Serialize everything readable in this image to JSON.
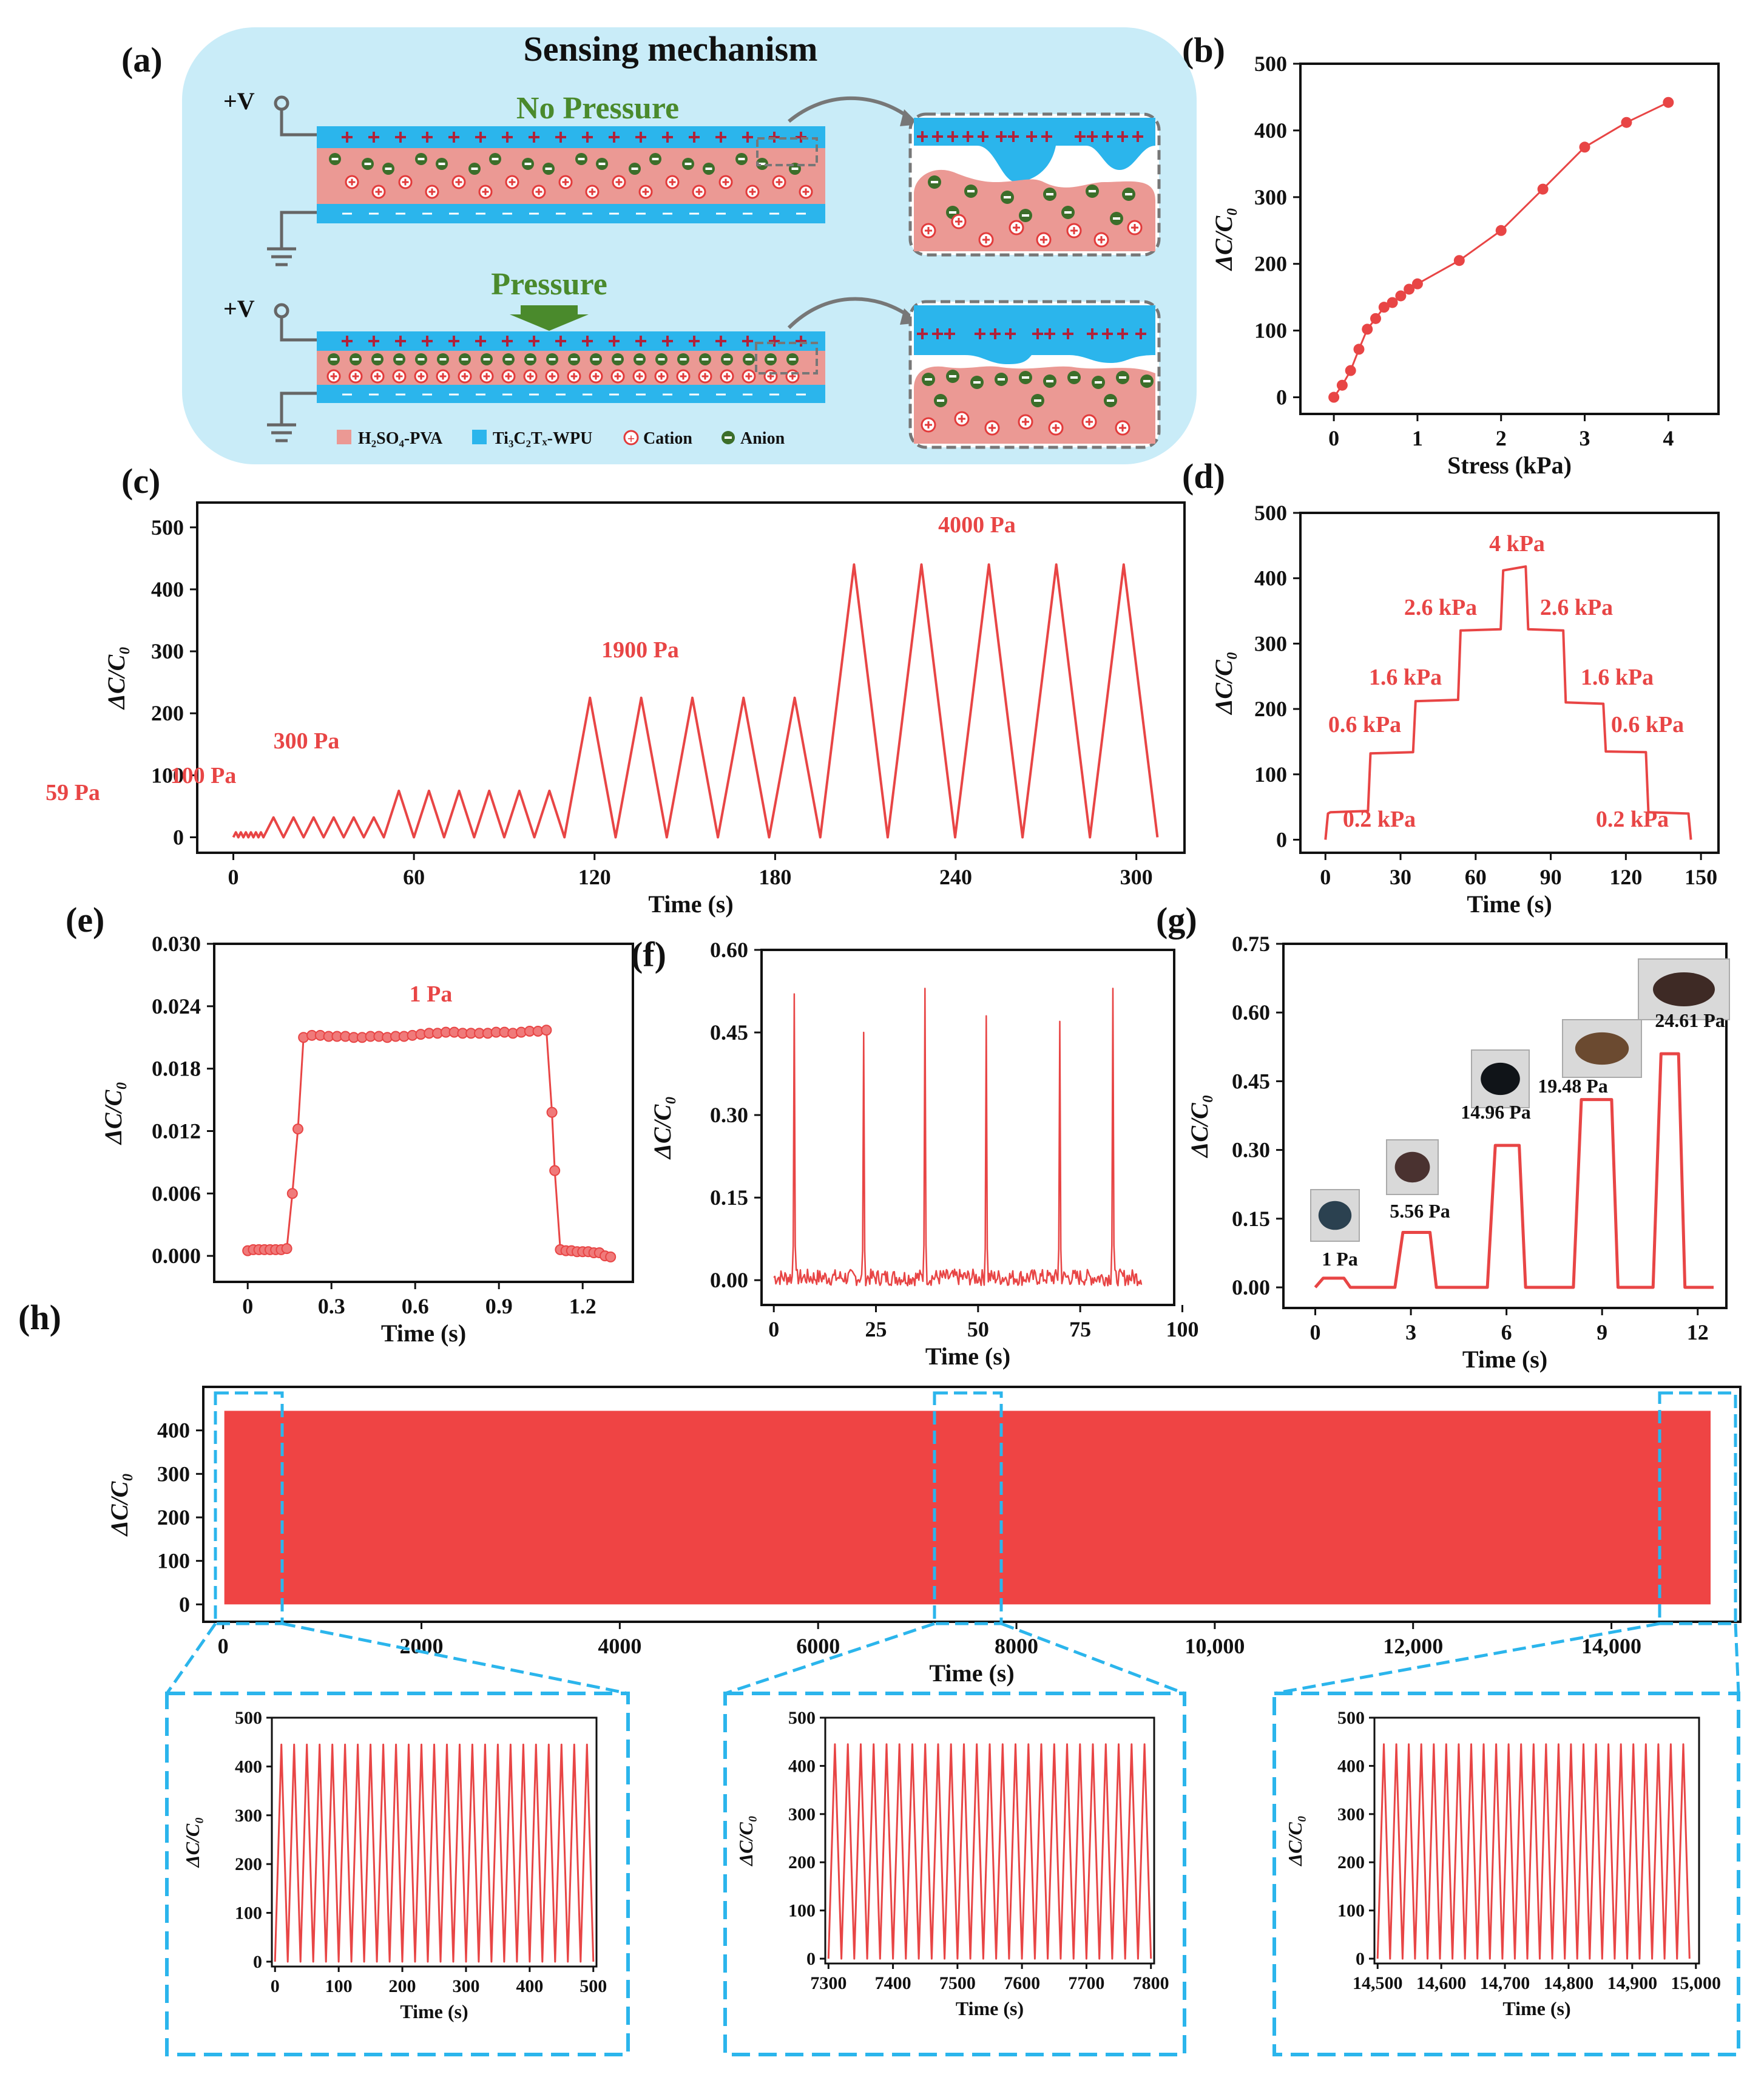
{
  "panel_labels": [
    "(a)",
    "(b)",
    "(c)",
    "(d)",
    "(e)",
    "(f)",
    "(g)",
    "(h)"
  ],
  "mechanism": {
    "title": "Sensing mechanism",
    "state_no_pressure": "No Pressure",
    "state_pressure": "Pressure",
    "voltage_label": "+V",
    "legend": [
      "H₂SO₄-PVA",
      "Ti₃C₂Tₓ-WPU",
      "Cation",
      "Anion"
    ],
    "colors": {
      "background": "#c9ecf8",
      "electrode": "#2bb5ec",
      "electrolyte": "#eb9994",
      "cation": "#e23b3b",
      "anion": "#3c6e2a",
      "arrow": "#4a8a2c"
    }
  },
  "y_label": "ΔC/C₀",
  "colors": {
    "line": "#e84545",
    "fill": "#ef4444",
    "inset_frame": "#2bb5ec"
  },
  "chart_data": [
    {
      "id": "b",
      "type": "line",
      "x": [
        0,
        0.1,
        0.2,
        0.3,
        0.4,
        0.5,
        0.6,
        0.7,
        0.8,
        0.9,
        1.0,
        1.5,
        2.0,
        2.5,
        3.0,
        3.5,
        4.0
      ],
      "y": [
        0,
        18,
        40,
        72,
        102,
        118,
        135,
        142,
        152,
        162,
        170,
        205,
        250,
        312,
        375,
        412,
        442
      ],
      "xlabel": "Stress (kPa)",
      "ylabel": "ΔC/C₀",
      "xlim": [
        -0.4,
        4.6
      ],
      "ylim": [
        -25,
        500
      ],
      "xticks": [
        0,
        1,
        2,
        3,
        4
      ],
      "yticks": [
        0,
        100,
        200,
        300,
        400,
        500
      ]
    },
    {
      "id": "c",
      "type": "line",
      "segments": [
        {
          "label": "59 Pa",
          "start": 0,
          "end": 10,
          "amp": 8,
          "cycles": 6
        },
        {
          "label": "100 Pa",
          "start": 10,
          "end": 50,
          "amp": 32,
          "cycles": 6
        },
        {
          "label": "300 Pa",
          "start": 50,
          "end": 110,
          "amp": 75,
          "cycles": 6
        },
        {
          "label": "1900 Pa",
          "start": 110,
          "end": 195,
          "amp": 225,
          "cycles": 5
        },
        {
          "label": "4000 Pa",
          "start": 195,
          "end": 307,
          "amp": 440,
          "cycles": 5
        }
      ],
      "xlabel": "Time (s)",
      "ylabel": "ΔC/C₀",
      "xlim": [
        -12,
        316
      ],
      "ylim": [
        -25,
        540
      ],
      "xticks": [
        0,
        60,
        120,
        180,
        240,
        300
      ],
      "yticks": [
        0,
        100,
        200,
        300,
        400,
        500
      ]
    },
    {
      "id": "d",
      "type": "line",
      "x": [
        0,
        1,
        2,
        17,
        18,
        35,
        36,
        53,
        54,
        70,
        71,
        80,
        81,
        95,
        96,
        111,
        112,
        128,
        129,
        145,
        146
      ],
      "y": [
        0,
        40,
        42,
        44,
        132,
        134,
        212,
        214,
        320,
        322,
        412,
        418,
        322,
        320,
        210,
        208,
        135,
        134,
        42,
        40,
        0
      ],
      "annotations": [
        "0.2 kPa",
        "0.6 kPa",
        "1.6 kPa",
        "2.6 kPa",
        "4 kPa",
        "2.6 kPa",
        "1.6 kPa",
        "0.6 kPa",
        "0.2 kPa"
      ],
      "xlabel": "Time (s)",
      "ylabel": "ΔC/C₀",
      "xlim": [
        -10,
        157
      ],
      "ylim": [
        -20,
        500
      ],
      "xticks": [
        0,
        30,
        60,
        90,
        120,
        150
      ],
      "yticks": [
        0,
        100,
        200,
        300,
        400,
        500
      ]
    },
    {
      "id": "e",
      "type": "scatter",
      "x": [
        0.0,
        0.02,
        0.04,
        0.06,
        0.08,
        0.1,
        0.12,
        0.14,
        0.16,
        0.18,
        0.2,
        0.23,
        0.26,
        0.29,
        0.32,
        0.35,
        0.38,
        0.41,
        0.44,
        0.47,
        0.5,
        0.53,
        0.56,
        0.59,
        0.62,
        0.65,
        0.68,
        0.71,
        0.74,
        0.77,
        0.8,
        0.83,
        0.86,
        0.89,
        0.92,
        0.95,
        0.98,
        1.01,
        1.04,
        1.07,
        1.09,
        1.1,
        1.12,
        1.14,
        1.16,
        1.18,
        1.2,
        1.22,
        1.24,
        1.26,
        1.28,
        1.3
      ],
      "y": [
        0.0005,
        0.0006,
        0.0006,
        0.0006,
        0.0006,
        0.0006,
        0.0006,
        0.0007,
        0.006,
        0.0122,
        0.021,
        0.0212,
        0.0212,
        0.0211,
        0.0211,
        0.0211,
        0.021,
        0.021,
        0.0211,
        0.0211,
        0.021,
        0.0211,
        0.0211,
        0.0212,
        0.0213,
        0.0214,
        0.0214,
        0.0215,
        0.0215,
        0.0214,
        0.0214,
        0.0214,
        0.0214,
        0.0215,
        0.0215,
        0.0214,
        0.0215,
        0.0216,
        0.0216,
        0.0217,
        0.0138,
        0.0082,
        0.0006,
        0.0005,
        0.0005,
        0.0004,
        0.0004,
        0.0004,
        0.0003,
        0.0003,
        0.0,
        -0.0001
      ],
      "annotation": "1 Pa",
      "xlabel": "Time (s)",
      "ylabel": "ΔC/C₀",
      "xlim": [
        -0.12,
        1.38
      ],
      "ylim": [
        -0.0025,
        0.03
      ],
      "xticks": [
        0.0,
        0.3,
        0.6,
        0.9,
        1.2
      ],
      "ytick_labels": [
        "0.000",
        "0.006",
        "0.012",
        "0.018",
        "0.024",
        "0.030"
      ],
      "yticks": [
        0,
        0.006,
        0.012,
        0.018,
        0.024,
        0.03
      ]
    },
    {
      "id": "f",
      "type": "line",
      "spikes": [
        {
          "t": 5,
          "peak": 0.52
        },
        {
          "t": 22,
          "peak": 0.45
        },
        {
          "t": 37,
          "peak": 0.53
        },
        {
          "t": 52,
          "peak": 0.48
        },
        {
          "t": 70,
          "peak": 0.47
        },
        {
          "t": 83,
          "peak": 0.53
        }
      ],
      "xlabel": "Time (s)",
      "ylabel": "ΔC/C₀",
      "xlim": [
        -3,
        98
      ],
      "ylim": [
        -0.045,
        0.6
      ],
      "xticks": [
        0,
        25,
        50,
        75,
        100
      ],
      "ytick_labels": [
        "0.00",
        "0.15",
        "0.30",
        "0.45",
        "0.60"
      ],
      "yticks": [
        0,
        0.15,
        0.3,
        0.45,
        0.6
      ]
    },
    {
      "id": "g",
      "type": "line",
      "steps": [
        {
          "label": "1 Pa",
          "start": 0.0,
          "end": 1.1,
          "level": 0.02
        },
        {
          "label": "5.56 Pa",
          "start": 2.5,
          "end": 3.8,
          "level": 0.12
        },
        {
          "label": "14.96 Pa",
          "start": 5.4,
          "end": 6.6,
          "level": 0.31
        },
        {
          "label": "19.48 Pa",
          "start": 8.1,
          "end": 9.5,
          "level": 0.41
        },
        {
          "label": "24.61 Pa",
          "start": 10.6,
          "end": 11.6,
          "level": 0.51
        }
      ],
      "xlabel": "Time (s)",
      "ylabel": "ΔC/C₀",
      "xlim": [
        -1,
        12.9
      ],
      "ylim": [
        -0.045,
        0.75
      ],
      "xticks": [
        0,
        3,
        6,
        9,
        12
      ],
      "ytick_labels": [
        "0.00",
        "0.15",
        "0.30",
        "0.45",
        "0.60",
        "0.75"
      ],
      "yticks": [
        0,
        0.15,
        0.3,
        0.45,
        0.6,
        0.75
      ]
    },
    {
      "id": "h",
      "type": "area",
      "x_range": [
        0,
        15000
      ],
      "envelope": [
        0,
        445
      ],
      "xlabel": "Time (s)",
      "ylabel": "ΔC/C₀",
      "xlim": [
        -200,
        15300
      ],
      "ylim": [
        -40,
        500
      ],
      "xtick_labels": [
        "0",
        "2000",
        "4000",
        "6000",
        "8000",
        "10,000",
        "12,000",
        "14,000"
      ],
      "xticks": [
        0,
        2000,
        4000,
        6000,
        8000,
        10000,
        12000,
        14000
      ],
      "yticks": [
        0,
        100,
        200,
        300,
        400
      ],
      "zoom_windows": [
        [
          0,
          500
        ],
        [
          7300,
          7800
        ],
        [
          14500,
          15000
        ]
      ]
    },
    {
      "id": "h1",
      "type": "line",
      "start": 0,
      "end": 500,
      "cycles": 25,
      "amp": 445,
      "xlabel": "Time (s)",
      "ylabel": "ΔC/C₀",
      "xlim": [
        -5,
        505
      ],
      "ylim": [
        -10,
        500
      ],
      "xtick_labels": [
        "0",
        "100",
        "200",
        "300",
        "400",
        "500"
      ],
      "xticks": [
        0,
        100,
        200,
        300,
        400,
        500
      ],
      "yticks": [
        0,
        100,
        200,
        300,
        400,
        500
      ]
    },
    {
      "id": "h2",
      "type": "line",
      "start": 7300,
      "end": 7800,
      "cycles": 25,
      "amp": 445,
      "xlabel": "Time (s)",
      "ylabel": "ΔC/C₀",
      "xlim": [
        7295,
        7805
      ],
      "ylim": [
        -10,
        500
      ],
      "xtick_labels": [
        "7300",
        "7400",
        "7500",
        "7600",
        "7700",
        "7800"
      ],
      "xticks": [
        7300,
        7400,
        7500,
        7600,
        7700,
        7800
      ],
      "yticks": [
        0,
        100,
        200,
        300,
        400,
        500
      ]
    },
    {
      "id": "h3",
      "type": "line",
      "start": 14500,
      "end": 14990,
      "cycles": 25,
      "amp": 445,
      "xlabel": "Time (s)",
      "ylabel": "ΔC/C₀",
      "xlim": [
        14495,
        15005
      ],
      "ylim": [
        -10,
        500
      ],
      "xtick_labels": [
        "14,500",
        "14,600",
        "14,700",
        "14,800",
        "14,900",
        "15,000"
      ],
      "xticks": [
        14500,
        14600,
        14700,
        14800,
        14900,
        15000
      ],
      "yticks": [
        0,
        100,
        200,
        300,
        400,
        500
      ]
    }
  ]
}
